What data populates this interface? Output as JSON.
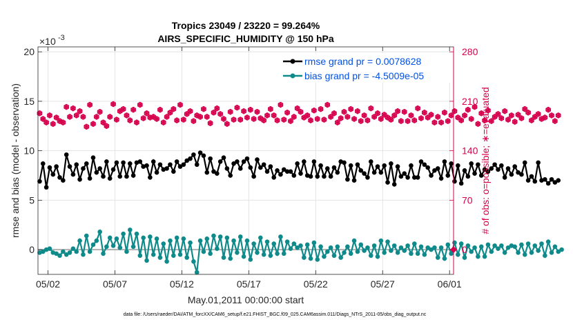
{
  "chart_data": {
    "type": "line",
    "title": "Tropics 23049 / 23220 = 99.264%",
    "subtitle": "AIRS_SPECIFIC_HUMIDITY @ 150 hPa",
    "xlabel": "May.01,2011 00:00:00 start",
    "ylabel": "rmse and bias (model - observation)",
    "ylabel_right": "# of obs: o=possible; ∗=evaluated",
    "exponent_label": "×10",
    "exponent_value": "-3",
    "x_ticks": [
      "05/02",
      "05/07",
      "05/12",
      "05/17",
      "05/22",
      "05/27",
      "06/01"
    ],
    "x_tick_days": [
      2,
      7,
      12,
      17,
      22,
      27,
      32
    ],
    "xlim": [
      1.25,
      32.3
    ],
    "y_ticks": [
      "0",
      "5",
      "10",
      "15",
      "20"
    ],
    "y_tick_values": [
      0,
      5,
      10,
      15,
      20
    ],
    "ylim": [
      -2.5,
      20.5
    ],
    "y2_ticks": [
      "0",
      "70",
      "140",
      "210",
      "280"
    ],
    "y2_tick_values": [
      0,
      70,
      140,
      210,
      280
    ],
    "y2lim": [
      -35,
      287
    ],
    "grid": true,
    "legend_position": "top-right",
    "x_step_days": 0.25,
    "x_start_day": 1.375,
    "series": [
      {
        "name": "rmse grand pr = 0.0078628",
        "color": "#000000",
        "axis": "left",
        "values": [
          6.9,
          8.7,
          6.3,
          8.3,
          7.6,
          8.4,
          7.3,
          7.0,
          9.6,
          8.4,
          7.6,
          8.6,
          7.1,
          8.2,
          8.7,
          7.2,
          9.3,
          7.8,
          8.2,
          7.4,
          8.9,
          7.2,
          8.1,
          8.8,
          7.4,
          8.8,
          7.4,
          8.7,
          7.5,
          8.8,
          8.9,
          8.4,
          8.5,
          7.3,
          8.9,
          7.8,
          8.6,
          8.1,
          8.2,
          8.6,
          7.9,
          8.9,
          8.4,
          8.6,
          9.0,
          9.2,
          9.6,
          8.6,
          9.8,
          9.5,
          7.8,
          9.2,
          7.9,
          7.7,
          8.9,
          9.3,
          8.2,
          7.5,
          8.7,
          8.9,
          8.2,
          8.9,
          9.2,
          8.3,
          7.4,
          9.1,
          8.3,
          8.6,
          7.9,
          8.4,
          7.3,
          8.0,
          7.6,
          8.1,
          7.9,
          7.9,
          7.5,
          8.7,
          7.7,
          8.9,
          7.5,
          7.4,
          8.9,
          7.4,
          8.5,
          7.4,
          8.2,
          7.4,
          8.3,
          7.8,
          8.9,
          8.8,
          7.1,
          8.5,
          7.0,
          8.6,
          8.0,
          7.7,
          7.3,
          8.9,
          7.8,
          8.4,
          7.8,
          8.5,
          6.8,
          8.7,
          6.6,
          8.4,
          7.4,
          7.7,
          7.3,
          8.5,
          7.3,
          7.3,
          8.9,
          8.6,
          8.3,
          7.5,
          8.0,
          8.2,
          7.2,
          8.9,
          7.5,
          8.7,
          6.9,
          8.5,
          6.7,
          8.0,
          7.4,
          8.7,
          7.7,
          8.6,
          7.5,
          8.1,
          7.9,
          8.2,
          8.6,
          8.1,
          8.5,
          7.3,
          8.2,
          7.6,
          8.4,
          7.8,
          7.6,
          8.8,
          7.0,
          7.4,
          6.9,
          8.8,
          7.0,
          7.1,
          6.7,
          7.1,
          6.8,
          7.0
        ]
      },
      {
        "name": "bias grand pr = -4.5009e-05",
        "color": "#0f8a8a",
        "axis": "left",
        "values": [
          -0.3,
          -0.2,
          0.0,
          0.1,
          -0.3,
          -0.4,
          -0.6,
          -0.2,
          -0.5,
          -0.3,
          0.1,
          -0.2,
          0.9,
          -0.5,
          1.4,
          -0.2,
          0.5,
          0.9,
          1.8,
          -0.4,
          0.3,
          1.2,
          0.4,
          1.1,
          0.2,
          1.6,
          -0.2,
          2.0,
          0.3,
          1.6,
          -0.6,
          1.2,
          -1.1,
          1.3,
          -0.5,
          1.1,
          -0.8,
          0.6,
          -1.2,
          0.9,
          -0.6,
          1.2,
          -0.5,
          1.1,
          -0.8,
          0.7,
          -1.2,
          -2.3,
          0.9,
          -0.2,
          1.1,
          -0.4,
          1.4,
          0.1,
          1.3,
          -0.8,
          1.2,
          -0.9,
          0.9,
          -0.3,
          1.3,
          -0.7,
          0.9,
          -1.0,
          0.6,
          -0.3,
          1.2,
          -0.5,
          0.8,
          -0.6,
          0.6,
          -0.4,
          1.3,
          -0.4,
          0.8,
          0.1,
          0.6,
          0.2,
          0.4,
          -0.8,
          0.5,
          -0.9,
          0.7,
          -1.0,
          0.3,
          -0.7,
          -0.2,
          0.2,
          -0.6,
          0.3,
          -0.8,
          -0.3,
          0.3,
          -0.4,
          0.9,
          -0.2,
          0.5,
          -0.1,
          0.2,
          -0.6,
          0.4,
          -0.7,
          0.9,
          -0.3,
          0.8,
          -0.1,
          0.4,
          -0.3,
          0.2,
          -0.1,
          0.4,
          -0.4,
          0.6,
          -0.4,
          0.3,
          -0.5,
          0.2,
          0.0,
          0.2,
          -0.8,
          0.2,
          -0.9,
          0.5,
          -0.4,
          0.7,
          -0.5,
          0.6,
          -0.8,
          0.4,
          -0.2,
          0.2,
          -0.7,
          0.3,
          -0.7,
          0.5,
          -0.2,
          0.4,
          0.1,
          0.4,
          -0.3,
          0.2,
          0.4,
          0.3,
          -0.3,
          0.5,
          -0.5,
          0.6,
          -0.3,
          0.4,
          -0.1,
          0.6,
          -0.6,
          0.8,
          -0.3,
          0.3,
          -0.2,
          0.0
        ]
      },
      {
        "name": "# of obs possible",
        "color": "#d6004d",
        "axis": "right",
        "marker": "o",
        "values": [
          193,
          185,
          180,
          190,
          178,
          187,
          182,
          180,
          202,
          188,
          200,
          190,
          196,
          188,
          174,
          205,
          178,
          188,
          195,
          180,
          175,
          188,
          206,
          184,
          196,
          199,
          190,
          183,
          198,
          180,
          205,
          186,
          193,
          187,
          188,
          185,
          198,
          180,
          188,
          194,
          199,
          183,
          205,
          184,
          192,
          196,
          182,
          190,
          188,
          199,
          188,
          179,
          194,
          200,
          192,
          185,
          178,
          195,
          184,
          201,
          184,
          196,
          187,
          198,
          185,
          195,
          186,
          183,
          190,
          199,
          190,
          183,
          205,
          184,
          194,
          182,
          188,
          200,
          195,
          187,
          190,
          183,
          197,
          185,
          199,
          184,
          205,
          188,
          193,
          180,
          186,
          195,
          188,
          199,
          185,
          196,
          182,
          190,
          183,
          200,
          188,
          193,
          185,
          191,
          187,
          184,
          190,
          196,
          182,
          195,
          182,
          190,
          183,
          200,
          186,
          194,
          187,
          191,
          180,
          188,
          180,
          194,
          182,
          190,
          196,
          187,
          183,
          190,
          198,
          185,
          202,
          178,
          193,
          183,
          197,
          182,
          188,
          192,
          186,
          196,
          184,
          190,
          181,
          191,
          186,
          199,
          194,
          183,
          188,
          192,
          185,
          187,
          198,
          190,
          182,
          190
        ]
      },
      {
        "name": "# of obs evaluated",
        "color": "#d6004d",
        "axis": "right",
        "marker": "*",
        "values": [
          193,
          185,
          180,
          190,
          178,
          187,
          182,
          180,
          202,
          188,
          200,
          190,
          196,
          188,
          174,
          205,
          178,
          188,
          195,
          180,
          175,
          188,
          206,
          184,
          196,
          199,
          190,
          183,
          198,
          180,
          205,
          186,
          193,
          187,
          188,
          185,
          198,
          180,
          188,
          194,
          199,
          183,
          205,
          184,
          192,
          196,
          182,
          190,
          188,
          199,
          188,
          179,
          194,
          200,
          192,
          185,
          178,
          195,
          184,
          201,
          184,
          196,
          187,
          198,
          185,
          195,
          186,
          183,
          190,
          199,
          190,
          183,
          205,
          184,
          194,
          182,
          188,
          200,
          195,
          187,
          190,
          183,
          197,
          185,
          199,
          184,
          205,
          188,
          193,
          180,
          186,
          195,
          188,
          199,
          185,
          196,
          182,
          190,
          183,
          200,
          188,
          193,
          185,
          191,
          187,
          184,
          190,
          196,
          182,
          195,
          182,
          190,
          183,
          200,
          186,
          194,
          187,
          191,
          180,
          188,
          180,
          194,
          182,
          190,
          196,
          187,
          183,
          190,
          198,
          185,
          202,
          178,
          193,
          183,
          197,
          182,
          188,
          192,
          186,
          196,
          184,
          190,
          181,
          191,
          186,
          199,
          194,
          183,
          188,
          192,
          185,
          187,
          198,
          190,
          182,
          190
        ]
      }
    ],
    "footer": "data file: /Users/raeder/DAI/ATM_forcXX/CAM6_setup/f.e21.FHIST_BGC.f09_025.CAM6assim.011/Diags_NTrS_2011-05/obs_diag_output.nc"
  }
}
